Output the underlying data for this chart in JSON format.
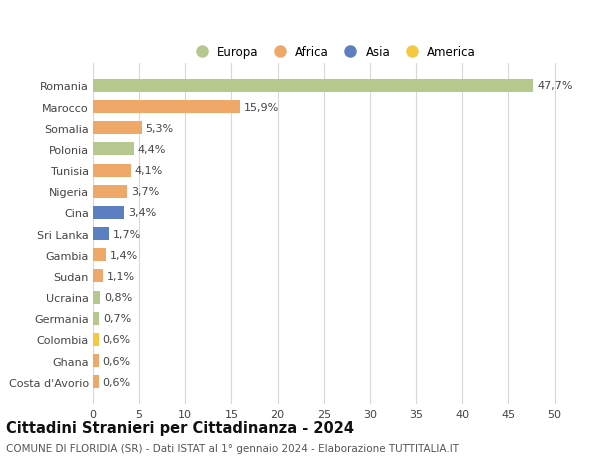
{
  "categories": [
    "Costa d'Avorio",
    "Ghana",
    "Colombia",
    "Germania",
    "Ucraina",
    "Sudan",
    "Gambia",
    "Sri Lanka",
    "Cina",
    "Nigeria",
    "Tunisia",
    "Polonia",
    "Somalia",
    "Marocco",
    "Romania"
  ],
  "values": [
    0.6,
    0.6,
    0.6,
    0.7,
    0.8,
    1.1,
    1.4,
    1.7,
    3.4,
    3.7,
    4.1,
    4.4,
    5.3,
    15.9,
    47.7
  ],
  "labels": [
    "0,6%",
    "0,6%",
    "0,6%",
    "0,7%",
    "0,8%",
    "1,1%",
    "1,4%",
    "1,7%",
    "3,4%",
    "3,7%",
    "4,1%",
    "4,4%",
    "5,3%",
    "15,9%",
    "47,7%"
  ],
  "bar_colors": [
    "#f0a868",
    "#f0a868",
    "#f5c842",
    "#b5c98e",
    "#b5c98e",
    "#f0a868",
    "#f0a868",
    "#5b7fc1",
    "#5b7fc1",
    "#f0a868",
    "#f0a868",
    "#b5c98e",
    "#f0a868",
    "#f0a868",
    "#b5c98e"
  ],
  "colors": {
    "Europa": "#b5c98e",
    "Africa": "#f0a868",
    "Asia": "#5b7fc1",
    "America": "#f5c842"
  },
  "xlim": [
    0,
    52
  ],
  "xticks": [
    0,
    5,
    10,
    15,
    20,
    25,
    30,
    35,
    40,
    45,
    50
  ],
  "title": "Cittadini Stranieri per Cittadinanza - 2024",
  "subtitle": "COMUNE DI FLORIDIA (SR) - Dati ISTAT al 1° gennaio 2024 - Elaborazione TUTTITALIA.IT",
  "legend_order": [
    "Europa",
    "Africa",
    "Asia",
    "America"
  ],
  "background_color": "#ffffff",
  "grid_color": "#d8d8d8",
  "bar_height": 0.62,
  "label_fontsize": 8,
  "ytick_fontsize": 8,
  "xtick_fontsize": 8,
  "title_fontsize": 10.5,
  "subtitle_fontsize": 7.5,
  "legend_fontsize": 8.5
}
